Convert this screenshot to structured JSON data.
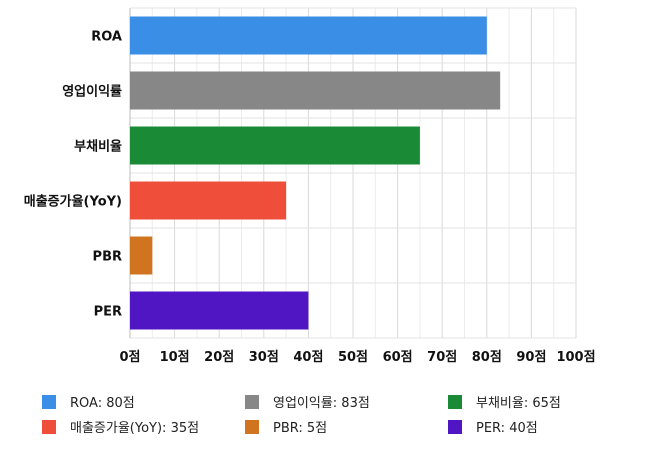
{
  "chart_data": {
    "type": "bar",
    "orientation": "horizontal",
    "categories": [
      "ROA",
      "영업이익률",
      "부채비율",
      "매출증가율(YoY)",
      "PBR",
      "PER"
    ],
    "values": [
      80,
      83,
      65,
      35,
      5,
      40
    ],
    "colors": [
      "#3a8ee6",
      "#878787",
      "#1b8a36",
      "#ef4e3a",
      "#d07420",
      "#5016c4"
    ],
    "xlim": [
      0,
      100
    ],
    "ticks": [
      0,
      10,
      20,
      30,
      40,
      50,
      60,
      70,
      80,
      90,
      100
    ],
    "tick_labels": [
      "0점",
      "10점",
      "20점",
      "30점",
      "40점",
      "50점",
      "60점",
      "70점",
      "80점",
      "90점",
      "100점"
    ],
    "grid": true,
    "legend_position": "bottom",
    "legend": [
      {
        "label": "ROA: 80점",
        "color": "#3a8ee6"
      },
      {
        "label": "영업이익률: 83점",
        "color": "#878787"
      },
      {
        "label": "부채비율: 65점",
        "color": "#1b8a36"
      },
      {
        "label": "매출증가율(YoY): 35점",
        "color": "#ef4e3a"
      },
      {
        "label": "PBR: 5점",
        "color": "#d07420"
      },
      {
        "label": "PER: 40점",
        "color": "#5016c4"
      }
    ]
  }
}
